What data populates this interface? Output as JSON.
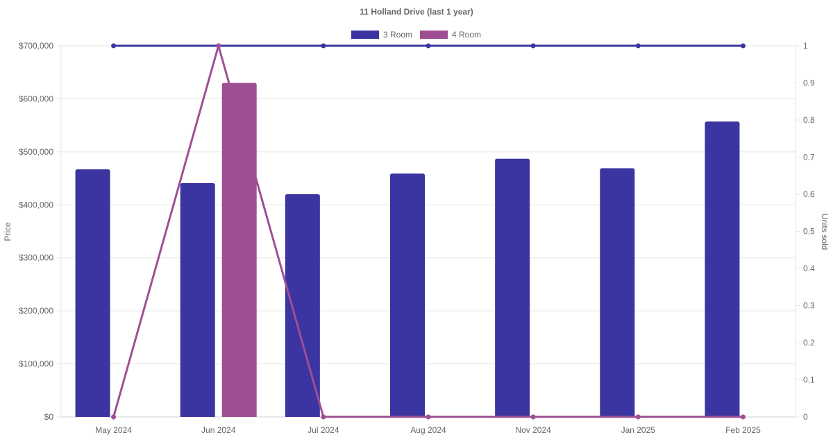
{
  "chart_data": {
    "type": "bar",
    "title": "11 Holland Drive (last 1 year)",
    "categories": [
      "May 2024",
      "Jun 2024",
      "Jul 2024",
      "Aug 2024",
      "Nov 2024",
      "Jan 2025",
      "Feb 2025"
    ],
    "ylabel": "Price",
    "y2label": "Units sold",
    "ylim": [
      0,
      700000
    ],
    "y2lim": [
      0,
      1
    ],
    "y_ticks": [
      "$0",
      "$100,000",
      "$200,000",
      "$300,000",
      "$400,000",
      "$500,000",
      "$600,000",
      "$700,000"
    ],
    "y2_ticks": [
      "0",
      "0.1",
      "0.2",
      "0.3",
      "0.4",
      "0.5",
      "0.6",
      "0.7",
      "0.8",
      "0.9",
      "1"
    ],
    "grid": true,
    "legend_position": "top-center",
    "series": [
      {
        "name": "3 Room",
        "color": "#3a35a0",
        "price": [
          467000,
          441000,
          420000,
          459000,
          487000,
          469000,
          557000
        ],
        "units_sold": [
          1,
          1,
          1,
          1,
          1,
          1,
          1
        ]
      },
      {
        "name": "4 Room",
        "color": "#9e4f93",
        "price": [
          null,
          630000,
          null,
          null,
          null,
          null,
          null
        ],
        "units_sold": [
          0,
          1,
          0,
          0,
          0,
          0,
          0
        ]
      }
    ]
  }
}
